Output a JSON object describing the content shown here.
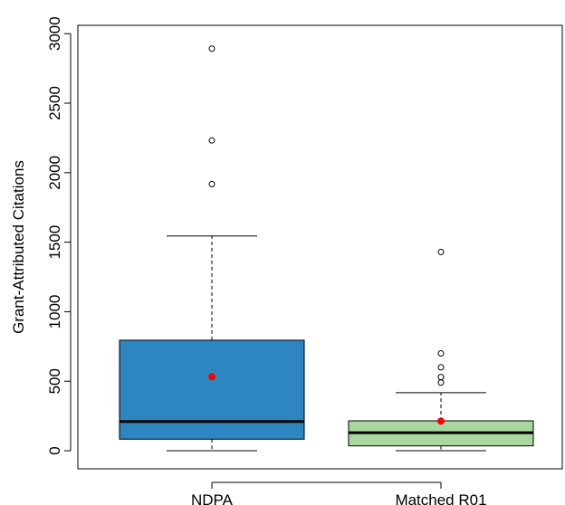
{
  "chart_data": {
    "type": "boxplot",
    "title": "",
    "xlabel": "",
    "ylabel": "Grant-Attributed Citations",
    "ylim": [
      -130,
      3060
    ],
    "yticks": [
      0,
      500,
      1000,
      1500,
      2000,
      2500,
      3000
    ],
    "grid": false,
    "legend": "none",
    "categories": [
      "NDPA",
      "Matched R01"
    ],
    "series": [
      {
        "color": "#2e86c1",
        "min": 0,
        "q1": 83,
        "median": 210,
        "q3": 795,
        "max": 1545,
        "mean": 533,
        "outliers": [
          1918,
          2232,
          2892
        ]
      },
      {
        "color": "#a8d8a0",
        "min": 0,
        "q1": 35,
        "median": 130,
        "q3": 215,
        "max": 418,
        "mean": 213,
        "outliers": [
          490,
          530,
          600,
          700,
          1430
        ]
      }
    ],
    "mean_marker_color": "#ff0000"
  }
}
